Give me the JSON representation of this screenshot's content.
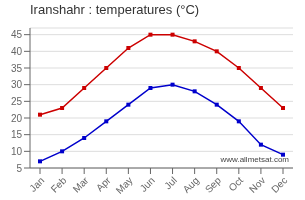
{
  "chart_data": {
    "type": "line",
    "title": "Iranshahr : temperatures (°C)",
    "categories": [
      "Jan",
      "Feb",
      "Mar",
      "Apr",
      "May",
      "Jun",
      "Jul",
      "Aug",
      "Sep",
      "Oct",
      "Nov",
      "Dec"
    ],
    "series": [
      {
        "color": "#cc0000",
        "marker": "square",
        "values": [
          21,
          23,
          29,
          35,
          41,
          45,
          45,
          43,
          40,
          35,
          29,
          23
        ]
      },
      {
        "color": "#0000cc",
        "marker": "square",
        "values": [
          7,
          10,
          14,
          19,
          24,
          29,
          30,
          28,
          24,
          19,
          12,
          9
        ]
      }
    ],
    "ylim": [
      5,
      47
    ],
    "yticks": [
      5,
      10,
      15,
      20,
      25,
      30,
      35,
      40,
      45
    ],
    "grid": "y",
    "annotations": [
      "www.allmetsat.com"
    ]
  }
}
